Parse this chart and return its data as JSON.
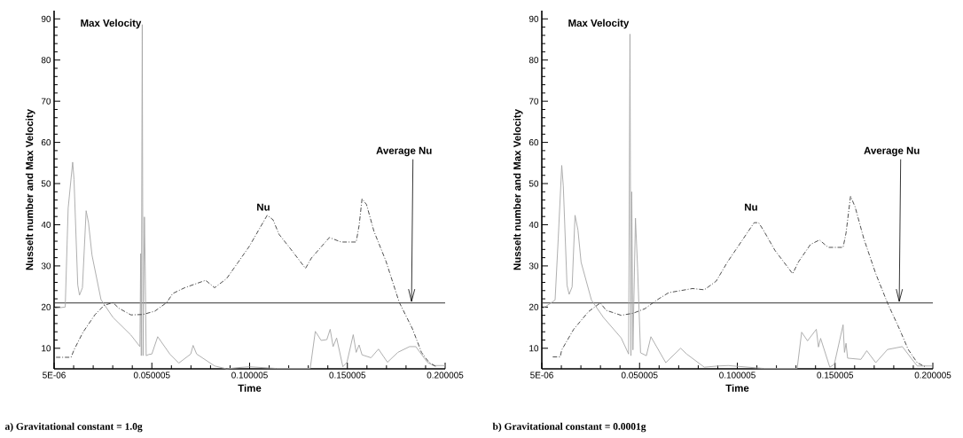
{
  "chart_data": [
    {
      "type": "line",
      "title": "a) Gravitational constant = 1.0g",
      "xlabel": "Time",
      "ylabel": "Nusselt number and Max Velocity",
      "xlim": [
        5e-06,
        0.200005
      ],
      "ylim": [
        5,
        92
      ],
      "xticks": [
        {
          "value": 5e-06,
          "label": "5E-06"
        },
        0.050005,
        0.100005,
        0.150005,
        0.200005
      ],
      "yticks": [
        10,
        20,
        30,
        40,
        50,
        60,
        70,
        80,
        90
      ],
      "ref_lines": [
        {
          "axis": "y",
          "value": 21,
          "label": "Average Nu",
          "color": "#333333"
        }
      ],
      "series": [
        {
          "name": "Max Velocity",
          "color": "#a6a6a6",
          "line_style": "solid",
          "x": [
            5e-06,
            0.0057,
            0.0072,
            0.0095,
            0.0102,
            0.0121,
            0.013,
            0.0145,
            0.0164,
            0.0176,
            0.0194,
            0.024,
            0.0301,
            0.0393,
            0.0439,
            0.0443,
            0.0446,
            0.0451,
            0.0455,
            0.0462,
            0.0466,
            0.0471,
            0.0485,
            0.05,
            0.053,
            0.0592,
            0.0638,
            0.0699,
            0.0711,
            0.0729,
            0.0821,
            0.0882,
            0.0943,
            0.1,
            0.1135,
            0.131,
            0.1336,
            0.1366,
            0.1395,
            0.1412,
            0.1427,
            0.1445,
            0.1477,
            0.1498,
            0.153,
            0.1545,
            0.156,
            0.1575,
            0.1621,
            0.1659,
            0.1705,
            0.1758,
            0.1818,
            0.185,
            0.1909,
            0.194,
            0.2
          ],
          "values": [
            19.7,
            20,
            44,
            55.2,
            51,
            25.4,
            22.9,
            24.7,
            43.4,
            40.5,
            32.6,
            21.8,
            17.5,
            13.2,
            10.4,
            33,
            8.2,
            88.6,
            8.2,
            41.9,
            30,
            8.2,
            8.5,
            8.6,
            12.8,
            8.6,
            6.4,
            8.6,
            10.7,
            8.6,
            5.7,
            5,
            5.3,
            5.5,
            5.1,
            5.1,
            14.1,
            11.9,
            12.1,
            14.6,
            10.4,
            12.5,
            5.5,
            6.6,
            13.3,
            9,
            10.8,
            8.4,
            7.7,
            9.8,
            6.6,
            9,
            10.4,
            10.4,
            6.6,
            5.8,
            5.8
          ]
        },
        {
          "name": "Nu",
          "color": "#3a3a3a",
          "line_style": "dashed",
          "x": [
            0.001,
            0.0087,
            0.0102,
            0.0148,
            0.021,
            0.0255,
            0.0301,
            0.0332,
            0.0393,
            0.0454,
            0.0515,
            0.0576,
            0.0607,
            0.0668,
            0.0775,
            0.0821,
            0.0882,
            0.0943,
            0.0999,
            0.109,
            0.112,
            0.115,
            0.121,
            0.1286,
            0.1316,
            0.1408,
            0.1468,
            0.1545,
            0.156,
            0.1575,
            0.1598,
            0.1636,
            0.1697,
            0.1765,
            0.1833,
            0.1879,
            0.1917,
            0.1955
          ],
          "values": [
            7.8,
            7.8,
            9.6,
            13.9,
            18.2,
            20.4,
            21.1,
            19.7,
            18.1,
            18.2,
            19,
            21.1,
            23.3,
            24.7,
            26.5,
            24.7,
            26.9,
            31,
            34.8,
            42.3,
            41.2,
            37.7,
            34.1,
            29.4,
            31.9,
            36.9,
            35.8,
            35.8,
            39.8,
            46.3,
            44.9,
            38.4,
            31.2,
            21.2,
            14.7,
            9,
            6.6,
            5.5
          ]
        }
      ]
    },
    {
      "type": "line",
      "title": "b) Gravitational constant = 0.0001g",
      "xlabel": "Time",
      "ylabel": "Nusselt number and Max Velocity",
      "xlim": [
        5e-06,
        0.200005
      ],
      "ylim": [
        5,
        92
      ],
      "xticks": [
        {
          "value": 5e-06,
          "label": "5E-06"
        },
        0.050005,
        0.100005,
        0.150005,
        0.200005
      ],
      "yticks": [
        10,
        20,
        30,
        40,
        50,
        60,
        70,
        80,
        90
      ],
      "ref_lines": [
        {
          "axis": "y",
          "value": 21,
          "label": "Average Nu",
          "color": "#333333"
        }
      ],
      "series": [
        {
          "name": "Max Velocity",
          "color": "#a6a6a6",
          "line_style": "solid",
          "x": [
            5e-06,
            0.0068,
            0.0084,
            0.0102,
            0.011,
            0.0129,
            0.014,
            0.0155,
            0.017,
            0.0185,
            0.0201,
            0.0254,
            0.0315,
            0.0406,
            0.0444,
            0.0451,
            0.0456,
            0.046,
            0.0466,
            0.0479,
            0.049,
            0.0505,
            0.0535,
            0.0558,
            0.0634,
            0.071,
            0.0741,
            0.0831,
            0.0904,
            0.0953,
            0.1132,
            0.1306,
            0.1329,
            0.1359,
            0.1404,
            0.1415,
            0.1426,
            0.1473,
            0.1496,
            0.1541,
            0.1548,
            0.1556,
            0.1564,
            0.1632,
            0.1662,
            0.1708,
            0.1768,
            0.1844,
            0.1889,
            0.192,
            0.1995
          ],
          "values": [
            19.5,
            21.7,
            36.6,
            54.4,
            49.4,
            25.3,
            23.1,
            24.9,
            42.3,
            38.7,
            30.9,
            21.7,
            17.5,
            12.5,
            8.6,
            86.3,
            8.2,
            48,
            9.6,
            41.6,
            29.5,
            8.9,
            8.2,
            12.8,
            6.5,
            10,
            8.6,
            5.4,
            5.7,
            5.8,
            5.1,
            5.1,
            13.9,
            11.8,
            14.6,
            10.3,
            12.4,
            5.4,
            6.1,
            15.7,
            9,
            11.2,
            7.6,
            7.3,
            9.4,
            6.5,
            9.7,
            10.4,
            7.6,
            5.7,
            5.7
          ]
        },
        {
          "name": "Nu",
          "color": "#3a3a3a",
          "line_style": "dashed",
          "x": [
            0.0056,
            0.0094,
            0.0102,
            0.0163,
            0.0239,
            0.0299,
            0.033,
            0.0406,
            0.0467,
            0.0527,
            0.0588,
            0.0649,
            0.0771,
            0.0831,
            0.0892,
            0.0949,
            0.1086,
            0.1109,
            0.1132,
            0.1192,
            0.1283,
            0.1313,
            0.1374,
            0.142,
            0.1465,
            0.1541,
            0.1556,
            0.1579,
            0.1602,
            0.1647,
            0.1708,
            0.1768,
            0.1829,
            0.1874,
            0.192,
            0.1965
          ],
          "values": [
            7.9,
            7.9,
            9.6,
            14.6,
            18.9,
            21,
            19.2,
            18,
            18.5,
            19.6,
            21.7,
            23.5,
            24.5,
            24.2,
            26.3,
            30.9,
            40.5,
            40.5,
            38.8,
            33.8,
            28.1,
            31,
            35.2,
            36.3,
            34.5,
            34.5,
            38,
            46.9,
            44.4,
            36.6,
            28.1,
            21,
            14.7,
            9.7,
            6.5,
            5.4
          ]
        }
      ]
    }
  ]
}
